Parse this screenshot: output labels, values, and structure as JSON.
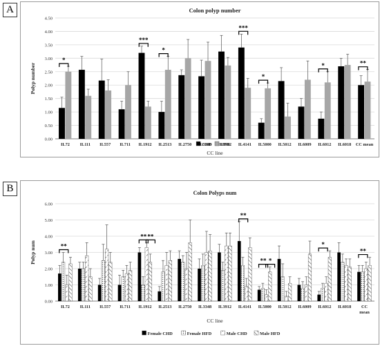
{
  "panel_letters": [
    "A",
    "B"
  ],
  "colors": {
    "chd": "#000000",
    "hfd": "#a6a6a6",
    "grid": "#d9d9d9",
    "axis": "#808080"
  },
  "chart_data": [
    {
      "type": "bar",
      "title": "Colon polyp number",
      "xlabel": "CC line",
      "ylabel": "Polyp number",
      "ylim": [
        0,
        4.5
      ],
      "yticks": [
        "0.00",
        "0.50",
        "1.00",
        "1.50",
        "2.00",
        "2.50",
        "3.00",
        "3.50",
        "4.00",
        "4.50"
      ],
      "grid": true,
      "legend_position": "bottom-center",
      "categories": [
        "IL72",
        "IL111",
        "IL557",
        "IL711",
        "IL1912",
        "IL2513",
        "IL2750",
        "IL3348",
        "IL3912",
        "IL4141",
        "IL5000",
        "IL5012",
        "IL6009",
        "IL6012",
        "IL6018",
        "CC mean"
      ],
      "series": [
        {
          "name": "CHD",
          "fill": "solid-black",
          "values": [
            1.15,
            2.57,
            2.17,
            1.1,
            3.2,
            1.0,
            2.37,
            2.33,
            3.25,
            3.4,
            0.6,
            2.15,
            1.2,
            0.75,
            2.7,
            2.0
          ],
          "errors": [
            0.4,
            0.5,
            0.8,
            0.3,
            0.25,
            0.4,
            0.2,
            0.6,
            0.6,
            0.5,
            0.15,
            0.5,
            0.3,
            0.25,
            0.3,
            0.35
          ]
        },
        {
          "name": "HFD",
          "fill": "solid-gray",
          "values": [
            2.5,
            1.6,
            1.8,
            2.0,
            1.2,
            2.57,
            3.0,
            2.9,
            2.73,
            1.9,
            1.88,
            0.83,
            2.2,
            2.1,
            2.75,
            2.13
          ]
        },
        {
          "errors": [
            0.2,
            0.25,
            0.4,
            0.5,
            0.2,
            0.5,
            0.7,
            0.7,
            0.3,
            0.35,
            0.2,
            0.5,
            0.7,
            0.4,
            0.4,
            0.45
          ]
        }
      ],
      "significance": [
        {
          "category": "IL72",
          "label": "*"
        },
        {
          "category": "IL1912",
          "label": "***"
        },
        {
          "category": "IL2513",
          "label": "*"
        },
        {
          "category": "IL4141",
          "label": "***"
        },
        {
          "category": "IL5000",
          "label": "*"
        },
        {
          "category": "IL6012",
          "label": "*"
        },
        {
          "category": "CC mean",
          "label": "**"
        }
      ]
    },
    {
      "type": "bar",
      "title": "Colon Polyps num",
      "xlabel": "CC line",
      "ylabel": "Polyp num",
      "ylim": [
        0,
        6
      ],
      "yticks": [
        "0.00",
        "1.00",
        "2.00",
        "3.00",
        "4.00",
        "5.00",
        "6.00"
      ],
      "grid": true,
      "legend_position": "bottom-center",
      "categories": [
        "IL72",
        "IL111",
        "IL557",
        "IL711",
        "IL1912",
        "IL2513",
        "IL2750",
        "IL3348",
        "IL3912",
        "IL4141",
        "IL5000",
        "IL5012",
        "IL6009",
        "IL6012",
        "IL6018",
        "CC mean"
      ],
      "series": [
        {
          "name": "Female CHD",
          "fill": "solid-black",
          "values": [
            1.7,
            2.0,
            1.0,
            1.0,
            3.0,
            0.6,
            2.6,
            2.0,
            3.0,
            3.7,
            0.7,
            2.6,
            1.0,
            0.4,
            3.0,
            1.8
          ],
          "errors": [
            0.5,
            0.4,
            0.4,
            0.6,
            0.3,
            0.3,
            0.5,
            0.6,
            0.5,
            1.2,
            0.2,
            0.8,
            0.4,
            0.2,
            0.6,
            0.4
          ]
        },
        {
          "name": "Female HFD",
          "fill": "dotted",
          "values": [
            2.4,
            2.0,
            2.5,
            1.5,
            1.0,
            1.8,
            2.4,
            2.2,
            1.9,
            2.2,
            0.8,
            1.5,
            0.8,
            0.8,
            2.4,
            1.8
          ]
        },
        {
          "errors": [
            0.6,
            0.4,
            1.0,
            0.4,
            0.5,
            0.7,
            0.4,
            0.7,
            0.5,
            0.5,
            0.3,
            0.8,
            0.4,
            0.3,
            0.5,
            0.4
          ]
        },
        {
          "name": "Male CHD",
          "fill": "dashed-diagonal",
          "values": [
            1.0,
            2.8,
            3.2,
            1.7,
            3.3,
            2.2,
            2.0,
            3.0,
            3.4,
            0.9,
            0.4,
            0.3,
            1.0,
            1.1,
            2.2,
            2.0
          ],
          "errors": [
            0.6,
            0.8,
            1.5,
            0.5,
            0.3,
            0.8,
            1.0,
            1.3,
            0.8,
            0.5,
            0.3,
            0.3,
            0.5,
            0.4,
            0.4,
            0.4
          ]
        },
        {
          "name": "Male HFD",
          "fill": "hatched",
          "values": [
            2.3,
            1.5,
            2.4,
            1.9,
            2.4,
            2.5,
            3.6,
            3.1,
            3.4,
            3.3,
            1.8,
            1.1,
            2.9,
            2.7,
            2.1,
            2.2
          ],
          "errors": [
            0.4,
            0.5,
            0.6,
            0.5,
            0.5,
            0.6,
            1.4,
            1.0,
            0.8,
            0.6,
            0.3,
            0.4,
            0.8,
            0.4,
            0.5,
            0.5
          ]
        }
      ],
      "significance": [
        {
          "category": "IL72",
          "label": "**"
        },
        {
          "category": "IL1912",
          "label": "**"
        },
        {
          "category": "IL1912",
          "label": "**"
        },
        {
          "category": "IL4141",
          "label": "**"
        },
        {
          "category": "IL5000",
          "label": "**"
        },
        {
          "category": "IL5000",
          "label": "*"
        },
        {
          "category": "IL6012",
          "label": "*"
        },
        {
          "category": "CC mean",
          "label": "**"
        }
      ]
    }
  ]
}
